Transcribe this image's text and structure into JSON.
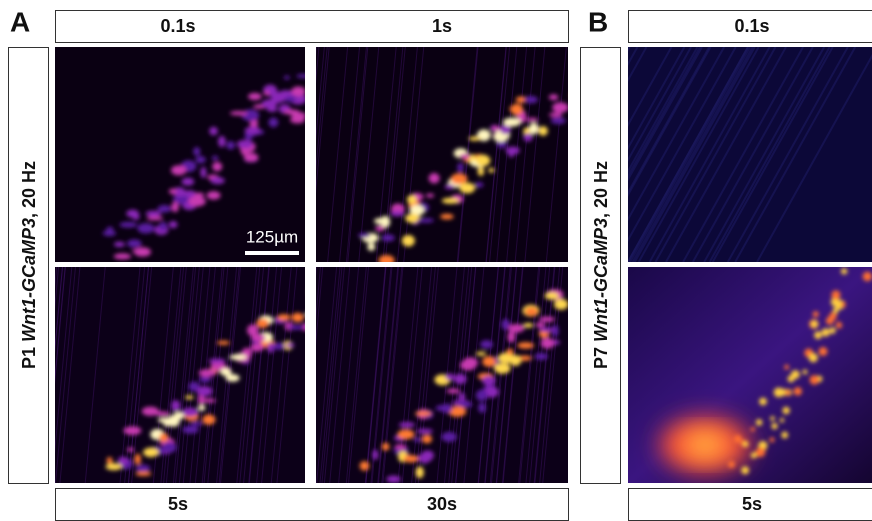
{
  "panels": {
    "A": {
      "letter": "A",
      "top_labels": [
        "0.1s",
        "1s"
      ],
      "bottom_labels": [
        "5s",
        "30s"
      ],
      "side_label": {
        "prefix": "P1 ",
        "italic": "Wnt1-GCaMP3",
        "suffix": ", 20 Hz"
      },
      "scale_bar": "125µm"
    },
    "B": {
      "letter": "B",
      "top_labels": [
        "0.1s"
      ],
      "bottom_labels": [
        "5s"
      ],
      "side_label": {
        "prefix": "P7 ",
        "italic": "Wnt1-GCaMP3",
        "suffix": ", 20 Hz"
      }
    }
  }
}
